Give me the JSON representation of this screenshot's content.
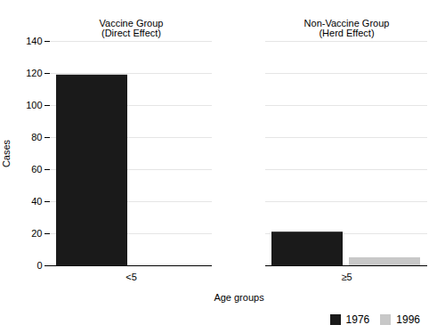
{
  "chart_data": {
    "type": "bar",
    "categories": [
      "<5",
      "≥5"
    ],
    "series": [
      {
        "name": "1976",
        "color": "#1a1a1a",
        "values": [
          119,
          21
        ]
      },
      {
        "name": "1996",
        "color": "#c8c8c8",
        "values": [
          0,
          5
        ]
      }
    ],
    "xlabel": "Age groups",
    "ylabel": "Cases",
    "ylim": [
      0,
      140
    ],
    "yticks": [
      0,
      20,
      40,
      60,
      80,
      100,
      120,
      140
    ],
    "grid": true,
    "legend": "lower right",
    "annotations": [
      "Vaccine Group\n(Direct Effect)",
      "Non-Vaccine Group\n(Herd Effect)"
    ]
  }
}
